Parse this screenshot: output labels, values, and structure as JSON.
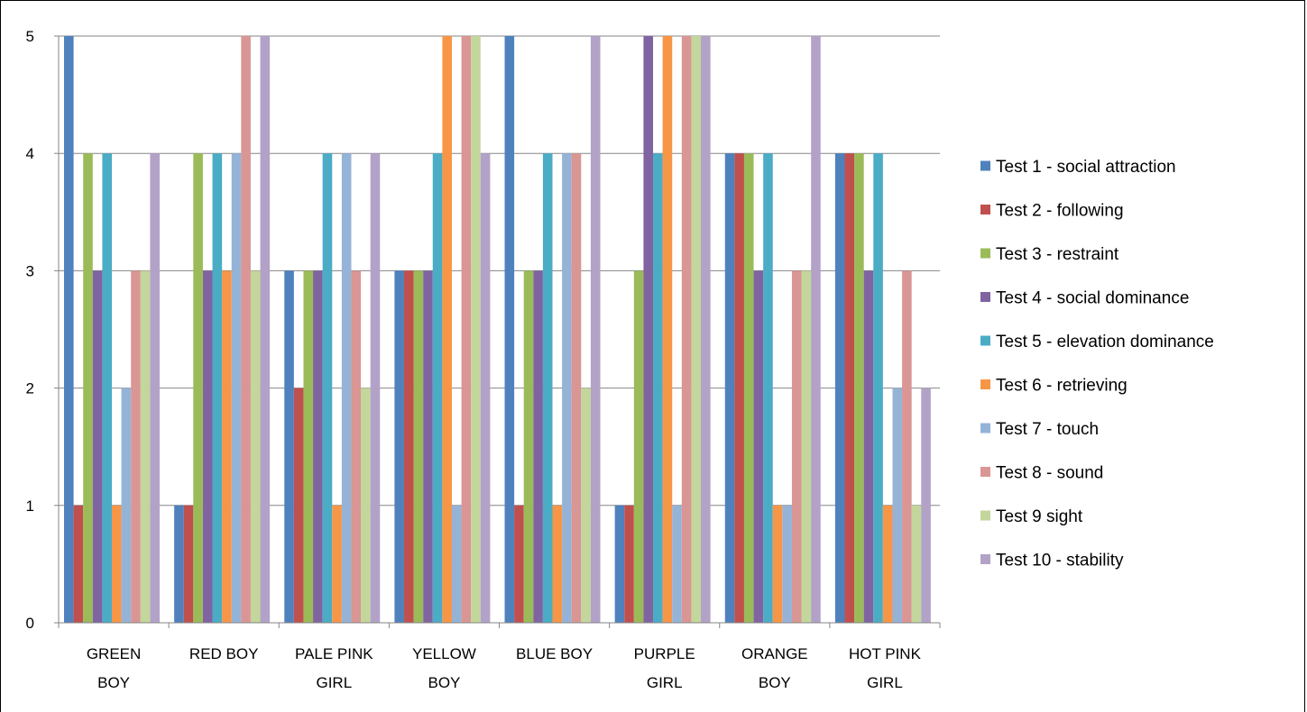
{
  "chart_data": {
    "type": "bar",
    "categories": [
      [
        "GREEN",
        "BOY"
      ],
      [
        "RED BOY"
      ],
      [
        "PALE PINK",
        "GIRL"
      ],
      [
        "YELLOW",
        "BOY"
      ],
      [
        "BLUE BOY"
      ],
      [
        "PURPLE",
        "GIRL"
      ],
      [
        "ORANGE",
        "BOY"
      ],
      [
        "HOT PINK",
        "GIRL"
      ]
    ],
    "ylim": [
      0,
      5
    ],
    "yticks": [
      "0",
      "1",
      "2",
      "3",
      "4",
      "5"
    ],
    "grid": true,
    "legend_position": "right",
    "series": [
      {
        "name": "Test 1 - social attraction",
        "color": "#4F81BD",
        "values": [
          5,
          1,
          3,
          3,
          5,
          1,
          4,
          4
        ]
      },
      {
        "name": "Test 2 - following",
        "color": "#C0504D",
        "values": [
          1,
          1,
          2,
          3,
          1,
          1,
          4,
          4
        ]
      },
      {
        "name": "Test 3 - restraint",
        "color": "#9BBB59",
        "values": [
          4,
          4,
          3,
          3,
          3,
          3,
          4,
          4
        ]
      },
      {
        "name": "Test 4 - social dominance",
        "color": "#8064A2",
        "values": [
          3,
          3,
          3,
          3,
          3,
          5,
          3,
          3
        ]
      },
      {
        "name": "Test 5 - elevation dominance",
        "color": "#4BACC6",
        "values": [
          4,
          4,
          4,
          4,
          4,
          4,
          4,
          4
        ]
      },
      {
        "name": "Test 6 - retrieving",
        "color": "#F79646",
        "values": [
          1,
          3,
          1,
          5,
          1,
          5,
          1,
          1
        ]
      },
      {
        "name": "Test 7 - touch",
        "color": "#95B3D7",
        "values": [
          2,
          4,
          4,
          1,
          4,
          1,
          1,
          2
        ]
      },
      {
        "name": "Test 8 - sound",
        "color": "#D99694",
        "values": [
          3,
          5,
          3,
          5,
          4,
          5,
          3,
          3
        ]
      },
      {
        "name": "Test 9 sight",
        "color": "#C3D69B",
        "values": [
          3,
          3,
          2,
          5,
          2,
          5,
          3,
          1
        ]
      },
      {
        "name": "Test 10 - stability",
        "color": "#B2A2C7",
        "values": [
          4,
          5,
          4,
          4,
          5,
          5,
          5,
          2
        ]
      }
    ]
  }
}
